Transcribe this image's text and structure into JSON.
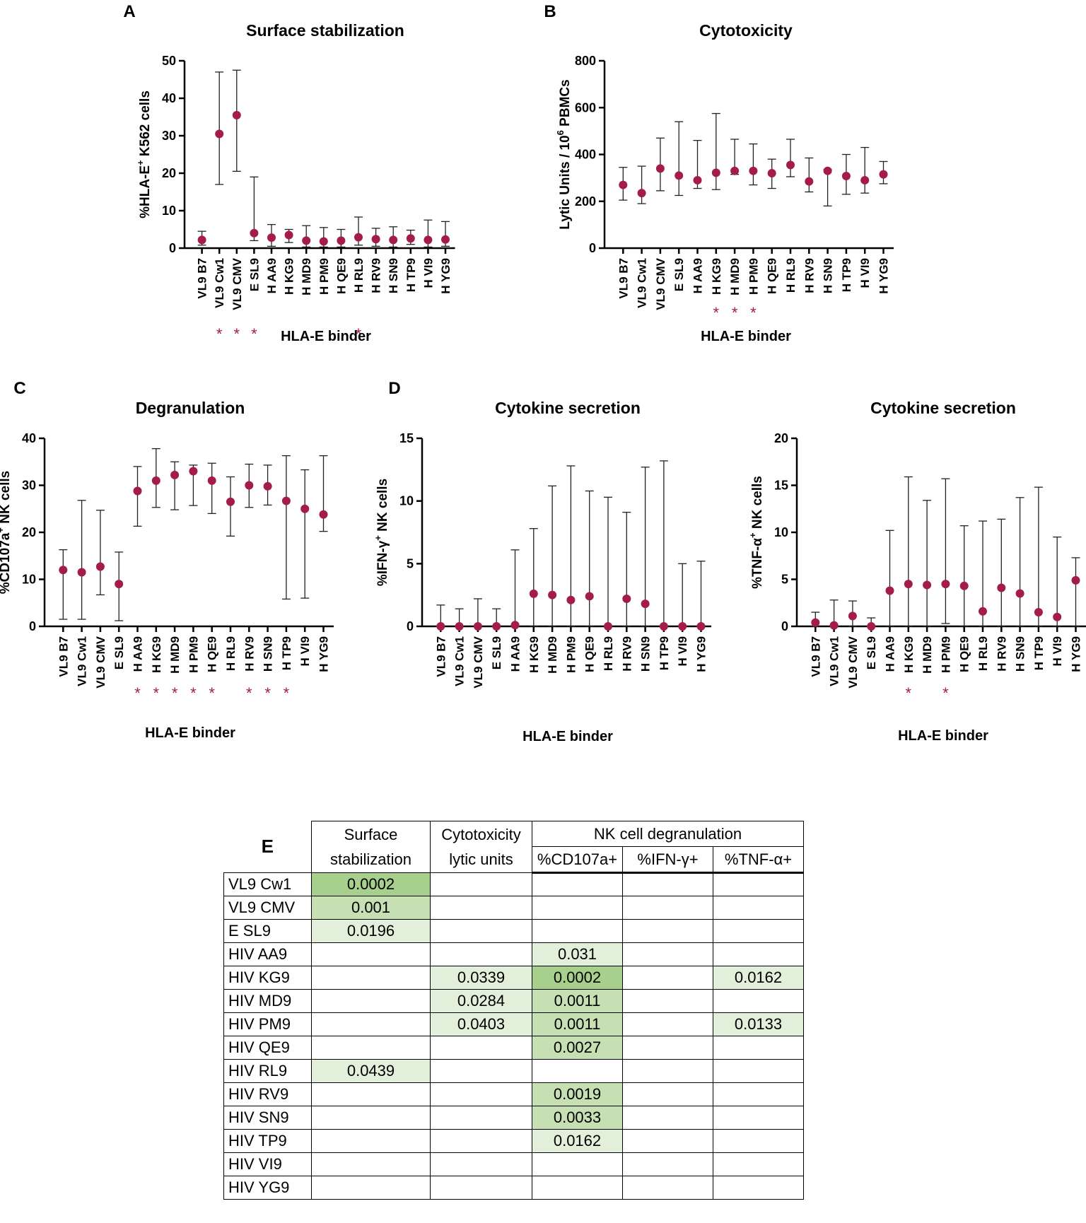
{
  "colors": {
    "marker": "#a31c4c",
    "axis": "#000000",
    "star": "#a31c4c",
    "p_strong": "#a8d08d",
    "p_mid": "#c6e0b4",
    "p_light": "#e2efda"
  },
  "chart_data": [
    {
      "id": "A",
      "type": "scatter",
      "panel_letter": "A",
      "title": "Surface stabilization",
      "ylabel_parts": [
        "%HLA-E",
        "+",
        " K562 cells"
      ],
      "xlabel": "HLA-E binder",
      "ylim": [
        0,
        50
      ],
      "yticks": [
        0,
        10,
        20,
        30,
        40,
        50
      ],
      "categories": [
        "VL9 B7",
        "VL9 Cw1",
        "VL9 CMV",
        "E SL9",
        "H AA9",
        "H KG9",
        "H MD9",
        "H PM9",
        "H QE9",
        "H RL9",
        "H RV9",
        "H SN9",
        "H TP9",
        "H VI9",
        "H YG9"
      ],
      "values": [
        2.2,
        30.5,
        35.5,
        4.0,
        2.8,
        3.5,
        2.0,
        1.8,
        2.0,
        2.9,
        2.4,
        2.2,
        2.6,
        2.2,
        2.3
      ],
      "err_low": [
        0.8,
        17.0,
        20.5,
        2.0,
        0.5,
        1.5,
        0.3,
        0.3,
        0.3,
        0.8,
        0.5,
        0.3,
        1.0,
        0.3,
        0.5
      ],
      "err_high": [
        4.5,
        47.0,
        47.5,
        19.0,
        6.3,
        5.0,
        6.0,
        5.5,
        5.0,
        8.3,
        5.3,
        5.7,
        4.8,
        7.5,
        7.1
      ],
      "significant": [
        1,
        2,
        3,
        9
      ],
      "star": "*"
    },
    {
      "id": "B",
      "type": "scatter",
      "panel_letter": "B",
      "title": "Cytotoxicity",
      "ylabel_parts": [
        "Lytic Units  / 10",
        "6",
        " PBMCs"
      ],
      "xlabel": "HLA-E binder",
      "ylim": [
        0,
        800
      ],
      "yticks": [
        0,
        200,
        400,
        600,
        800
      ],
      "categories": [
        "VL9 B7",
        "VL9 Cw1",
        "VL9 CMV",
        "E SL9",
        "H AA9",
        "H KG9",
        "H MD9",
        "H PM9",
        "H QE9",
        "H RL9",
        "H RV9",
        "H SN9",
        "H TP9",
        "H VI9",
        "H YG9"
      ],
      "values": [
        270,
        235,
        340,
        310,
        290,
        322,
        330,
        330,
        320,
        355,
        285,
        330,
        308,
        290,
        315
      ],
      "err_low": [
        205,
        190,
        245,
        225,
        255,
        250,
        315,
        270,
        255,
        305,
        240,
        180,
        230,
        235,
        275
      ],
      "err_high": [
        345,
        350,
        470,
        540,
        460,
        575,
        465,
        445,
        380,
        465,
        385,
        335,
        400,
        430,
        370
      ],
      "significant": [
        5,
        6,
        7
      ],
      "star": "*"
    },
    {
      "id": "C",
      "type": "scatter",
      "panel_letter": "C",
      "title": "Degranulation",
      "ylabel_parts": [
        "%CD107a",
        "+",
        " NK cells"
      ],
      "xlabel": "HLA-E binder",
      "ylim": [
        0,
        40
      ],
      "yticks": [
        0,
        10,
        20,
        30,
        40
      ],
      "categories": [
        "VL9 B7",
        "VL9 Cw1",
        "VL9 CMV",
        "E SL9",
        "H AA9",
        "H KG9",
        "H MD9",
        "H PM9",
        "H QE9",
        "H RL9",
        "H RV9",
        "H SN9",
        "H TP9",
        "H VI9",
        "H YG9"
      ],
      "values": [
        12.0,
        11.5,
        12.7,
        9.0,
        28.8,
        31.0,
        32.2,
        33.0,
        31.0,
        26.5,
        30.0,
        29.8,
        26.7,
        25.0,
        23.8
      ],
      "err_low": [
        1.5,
        1.5,
        6.7,
        1.2,
        21.3,
        25.3,
        24.8,
        25.7,
        24.0,
        19.2,
        25.3,
        25.8,
        5.8,
        6.0,
        20.2
      ],
      "err_high": [
        16.3,
        26.8,
        24.7,
        15.8,
        34.0,
        37.8,
        35.0,
        34.3,
        34.7,
        31.8,
        34.5,
        34.3,
        36.3,
        33.3,
        36.3
      ],
      "significant": [
        4,
        5,
        6,
        7,
        8,
        10,
        11,
        12
      ],
      "star": "*"
    },
    {
      "id": "D1",
      "type": "scatter",
      "panel_letter": "D",
      "title": "Cytokine secretion",
      "ylabel_parts": [
        "%IFN-γ",
        "+",
        " NK cells"
      ],
      "xlabel": "HLA-E binder",
      "ylim": [
        0,
        15
      ],
      "yticks": [
        0,
        5,
        10,
        15
      ],
      "categories": [
        "VL9 B7",
        "VL9 Cw1",
        "VL9 CMV",
        "E SL9",
        "H AA9",
        "H KG9",
        "H MD9",
        "H PM9",
        "H QE9",
        "H RL9",
        "H RV9",
        "H SN9",
        "H TP9",
        "H VI9",
        "H YG9"
      ],
      "values": [
        0,
        0,
        0,
        0,
        0.1,
        2.6,
        2.5,
        2.1,
        2.4,
        0,
        2.2,
        1.8,
        0,
        0,
        0
      ],
      "err_low": [
        0,
        0,
        0,
        0,
        0,
        0,
        0,
        0,
        0,
        0,
        0,
        0,
        0,
        0,
        0
      ],
      "err_high": [
        1.7,
        1.4,
        2.2,
        1.4,
        6.1,
        7.8,
        11.2,
        12.8,
        10.8,
        10.3,
        9.1,
        12.7,
        13.2,
        5.0,
        5.2
      ],
      "significant": [],
      "star": "*"
    },
    {
      "id": "D2",
      "type": "scatter",
      "panel_letter": "",
      "title": "Cytokine secretion",
      "ylabel_parts": [
        "%TNF-α",
        "+",
        " NK cells"
      ],
      "xlabel": "HLA-E binder",
      "ylim": [
        0,
        20
      ],
      "yticks": [
        0,
        5,
        10,
        15,
        20
      ],
      "categories": [
        "VL9 B7",
        "VL9 Cw1",
        "VL9 CMV",
        "E SL9",
        "H AA9",
        "H KG9",
        "H MD9",
        "H PM9",
        "H QE9",
        "H RL9",
        "H RV9",
        "H SN9",
        "H TP9",
        "H VI9",
        "H YG9"
      ],
      "values": [
        0.4,
        0.1,
        1.1,
        0,
        3.8,
        4.5,
        4.4,
        4.5,
        4.3,
        1.6,
        4.1,
        3.5,
        1.5,
        1.0,
        4.9
      ],
      "err_low": [
        0,
        0,
        0,
        0,
        0,
        0,
        0,
        0.3,
        0,
        0,
        0,
        0,
        0,
        0,
        0
      ],
      "err_high": [
        1.5,
        2.8,
        2.7,
        0.9,
        10.2,
        15.9,
        13.4,
        15.7,
        10.7,
        11.2,
        11.4,
        13.7,
        14.8,
        9.5,
        7.3
      ],
      "significant": [
        5,
        7
      ],
      "star": "*"
    }
  ],
  "table": {
    "panel_letter": "E",
    "col_headers": {
      "surface_l1": "Surface",
      "surface_l2": "stabilization",
      "cyto_l1": "Cytotoxicity",
      "cyto_l2": "lytic units",
      "nk": "NK cell degranulation",
      "cd107": "%CD107a+",
      "ifn": "%IFN-γ+",
      "tnf": "%TNF-α+"
    },
    "rows": [
      {
        "label": "VL9 Cw1",
        "vals": [
          "0.0002",
          "",
          "",
          "",
          ""
        ],
        "shade": [
          "strong",
          "",
          "",
          "",
          ""
        ]
      },
      {
        "label": "VL9 CMV",
        "vals": [
          "0.001",
          "",
          "",
          "",
          ""
        ],
        "shade": [
          "mid",
          "",
          "",
          "",
          ""
        ]
      },
      {
        "label": "E SL9",
        "vals": [
          "0.0196",
          "",
          "",
          "",
          ""
        ],
        "shade": [
          "light",
          "",
          "",
          "",
          ""
        ]
      },
      {
        "label": "HIV AA9",
        "vals": [
          "",
          "",
          "0.031",
          "",
          ""
        ],
        "shade": [
          "",
          "",
          "light",
          "",
          ""
        ]
      },
      {
        "label": "HIV KG9",
        "vals": [
          "",
          "0.0339",
          "0.0002",
          "",
          "0.0162"
        ],
        "shade": [
          "",
          "light",
          "strong",
          "",
          "light"
        ]
      },
      {
        "label": "HIV MD9",
        "vals": [
          "",
          "0.0284",
          "0.0011",
          "",
          ""
        ],
        "shade": [
          "",
          "light",
          "mid",
          "",
          ""
        ]
      },
      {
        "label": "HIV PM9",
        "vals": [
          "",
          "0.0403",
          "0.0011",
          "",
          "0.0133"
        ],
        "shade": [
          "",
          "light",
          "mid",
          "",
          "light"
        ]
      },
      {
        "label": "HIV QE9",
        "vals": [
          "",
          "",
          "0.0027",
          "",
          ""
        ],
        "shade": [
          "",
          "",
          "mid",
          "",
          ""
        ]
      },
      {
        "label": "HIV RL9",
        "vals": [
          "0.0439",
          "",
          "",
          "",
          ""
        ],
        "shade": [
          "light",
          "",
          "",
          "",
          ""
        ]
      },
      {
        "label": "HIV RV9",
        "vals": [
          "",
          "",
          "0.0019",
          "",
          ""
        ],
        "shade": [
          "",
          "",
          "mid",
          "",
          ""
        ]
      },
      {
        "label": "HIV SN9",
        "vals": [
          "",
          "",
          "0.0033",
          "",
          ""
        ],
        "shade": [
          "",
          "",
          "mid",
          "",
          ""
        ]
      },
      {
        "label": "HIV TP9",
        "vals": [
          "",
          "",
          "0.0162",
          "",
          ""
        ],
        "shade": [
          "",
          "",
          "light",
          "",
          ""
        ]
      },
      {
        "label": "HIV VI9",
        "vals": [
          "",
          "",
          "",
          "",
          ""
        ],
        "shade": [
          "",
          "",
          "",
          "",
          ""
        ]
      },
      {
        "label": "HIV YG9",
        "vals": [
          "",
          "",
          "",
          "",
          ""
        ],
        "shade": [
          "",
          "",
          "",
          "",
          ""
        ]
      }
    ]
  }
}
